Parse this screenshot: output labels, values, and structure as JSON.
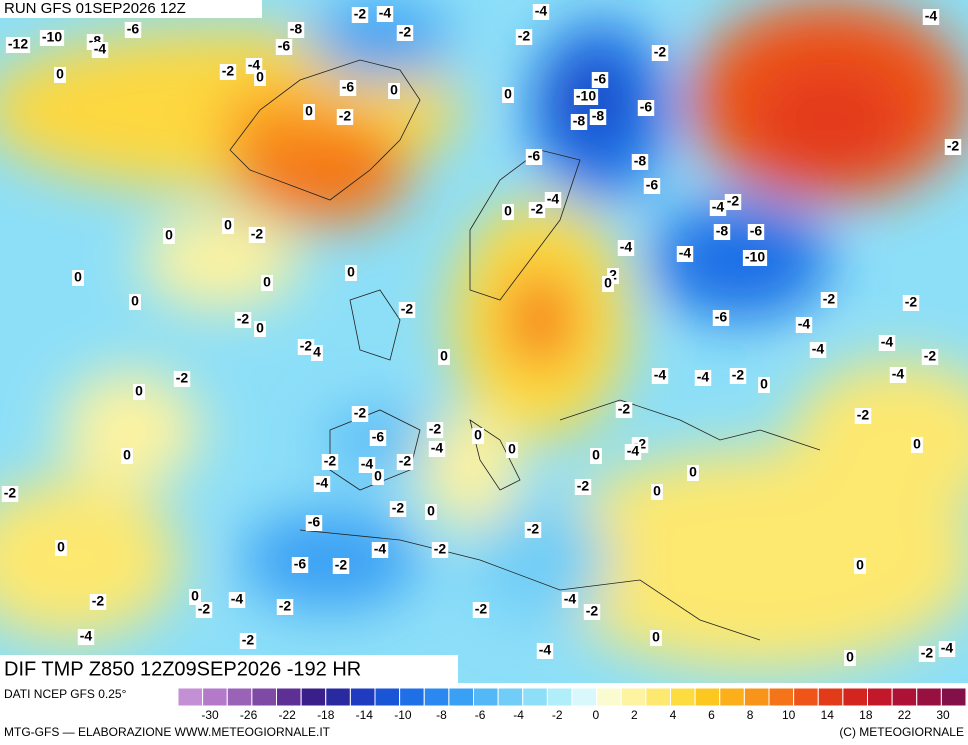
{
  "header": {
    "title": "RUN GFS 01SEP2026 12Z"
  },
  "map": {
    "subtitle": "DIF TMP Z850 12Z09SEP2026 -192 HR",
    "labels": [
      -12,
      -10,
      -8,
      -4,
      -6,
      0,
      -2,
      -4,
      0,
      -8,
      -6,
      -2,
      -4,
      -2,
      -6,
      0,
      -2,
      0,
      -2,
      -4,
      0,
      -6,
      -10,
      -8,
      -8,
      -6,
      -2,
      -8,
      -6,
      -6,
      -2,
      -4,
      0,
      -4,
      -2,
      -8,
      -6,
      -10,
      -4,
      -4,
      2,
      0,
      0,
      0,
      -2,
      0,
      0,
      0,
      0,
      -2,
      0,
      -2,
      -2,
      4,
      0,
      -2,
      0,
      -2,
      -6,
      -2,
      -4,
      0,
      -2,
      -4,
      -2,
      -4,
      0,
      -2,
      0,
      -6,
      -4,
      -2,
      -2,
      0,
      0,
      -2,
      -2,
      -2,
      -4,
      0,
      0,
      -4,
      -4,
      -2,
      0,
      -6,
      -4,
      -2,
      -2,
      -4,
      -4,
      -2,
      -4,
      -2,
      0,
      0,
      0,
      0,
      -2,
      -2,
      -4,
      0,
      -2,
      -4,
      -2,
      -2,
      -6,
      -2,
      -2,
      -4,
      -2,
      -4,
      0,
      0,
      -2,
      -4,
      -2,
      -4
    ]
  },
  "legend": {
    "source": "DATI NCEP GFS 0.25°",
    "ticks": [
      -30,
      -26,
      -22,
      -18,
      -14,
      -10,
      -8,
      -6,
      -4,
      -2,
      0,
      2,
      4,
      6,
      8,
      10,
      14,
      18,
      22,
      30
    ],
    "colors": [
      "#c58fd6",
      "#b27ac8",
      "#9a63b8",
      "#7f4aa6",
      "#5e2f94",
      "#3a1f8a",
      "#2a2aa0",
      "#1f3cc0",
      "#1a55d6",
      "#1f6fe6",
      "#2a88f0",
      "#3aa0f4",
      "#55b8f6",
      "#6fcdf7",
      "#8ddff8",
      "#b0eefa",
      "#d8f8fb",
      "#fbfbd0",
      "#fdf3a0",
      "#fde870",
      "#fddc40",
      "#fcc820",
      "#fbb01a",
      "#f9941a",
      "#f57418",
      "#ef5418",
      "#e33a1a",
      "#d4241e",
      "#c2182a",
      "#ad1236",
      "#981040",
      "#84104a"
    ]
  },
  "footer": {
    "left": "MTG-GFS — ELABORAZIONE WWW.METEOGIORNALE.IT",
    "right": "(C) METEOGIORNALE"
  }
}
